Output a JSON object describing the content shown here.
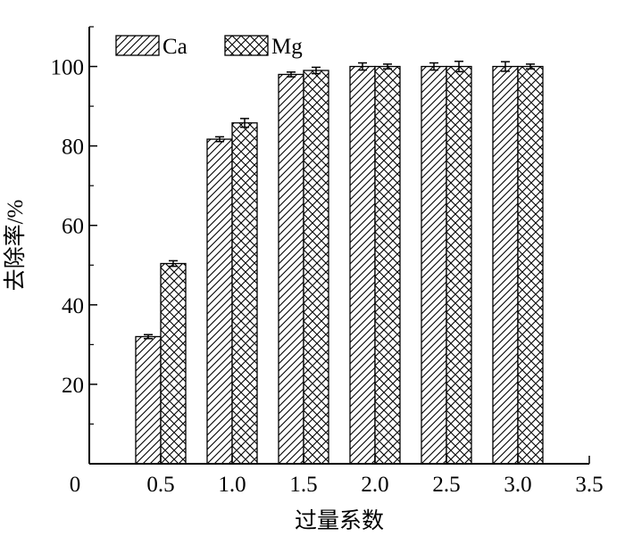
{
  "chart_data": {
    "type": "bar",
    "xlabel": "过量系数",
    "ylabel": "去除率/%",
    "x_tick_labels": [
      "0",
      "0.5",
      "1.0",
      "1.5",
      "2.0",
      "2.5",
      "3.0",
      "3.5"
    ],
    "y_tick_labels": [
      "20",
      "40",
      "60",
      "80",
      "100"
    ],
    "xlim": [
      0,
      3.5
    ],
    "ylim": [
      0,
      110
    ],
    "categories": [
      0.5,
      1.0,
      1.5,
      2.0,
      2.5,
      3.0
    ],
    "series": [
      {
        "name": "Ca",
        "pattern": "diagonal-hatch",
        "values": [
          32.0,
          81.7,
          98.0,
          100.0,
          100.0,
          100.0
        ],
        "errors": [
          0.5,
          0.6,
          0.6,
          0.9,
          0.9,
          1.2
        ]
      },
      {
        "name": "Mg",
        "pattern": "crosshatch",
        "values": [
          50.4,
          85.8,
          99.0,
          100.0,
          100.0,
          100.0
        ],
        "errors": [
          0.7,
          1.1,
          0.8,
          0.6,
          1.3,
          0.6
        ]
      }
    ],
    "legend_position": "top-left",
    "grid": false,
    "colors": {
      "stroke": "#000000",
      "fill": "#ffffff"
    }
  }
}
